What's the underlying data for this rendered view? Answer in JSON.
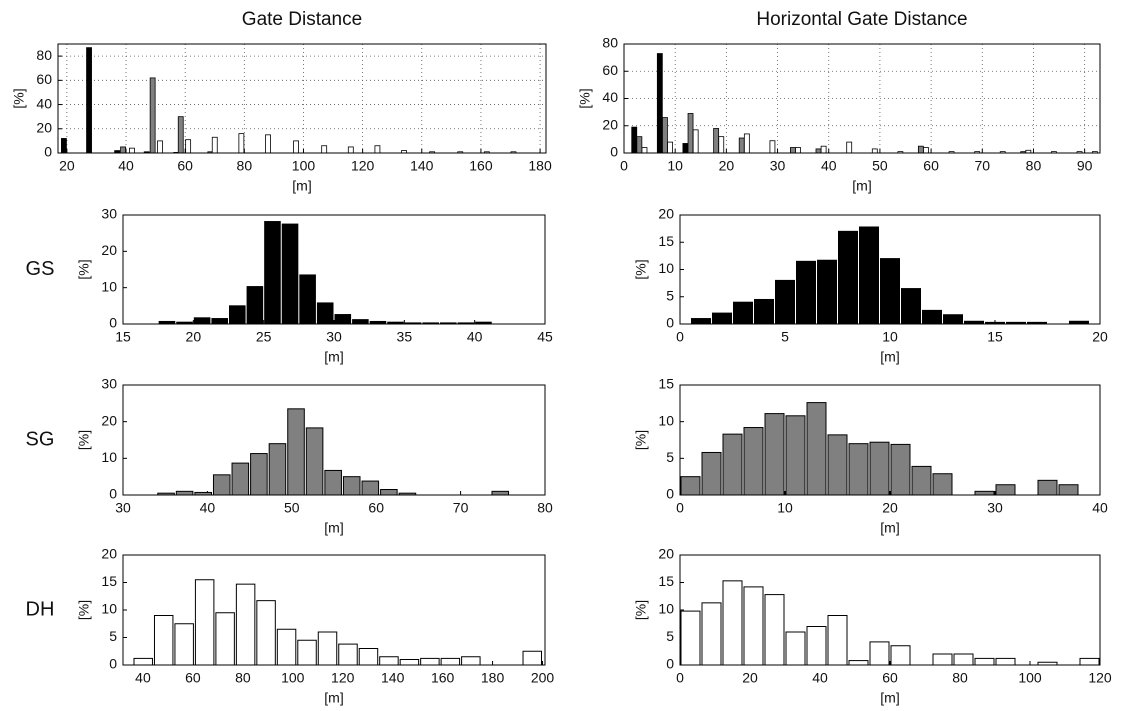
{
  "chart_data": [
    {
      "type": "bar",
      "title": "Gate Distance",
      "xlabel": "[m]",
      "ylabel": "[%]",
      "xlim": [
        17,
        182
      ],
      "ylim": [
        0,
        90
      ],
      "xticks": [
        20,
        40,
        60,
        80,
        100,
        120,
        140,
        160,
        180
      ],
      "yticks": [
        0,
        20,
        40,
        60,
        80
      ],
      "grid": true,
      "series": [
        {
          "color": "#000000",
          "x": [
            19,
            27.5,
            37,
            47,
            57
          ],
          "values": [
            12,
            87,
            2,
            1,
            0.5
          ]
        },
        {
          "color": "#808080",
          "x": [
            39,
            49,
            58.5,
            68.5
          ],
          "values": [
            5,
            62,
            30,
            1
          ]
        },
        {
          "color": "#ffffff",
          "x": [
            42,
            51.5,
            61,
            70,
            79,
            88,
            97.5,
            107,
            116,
            125,
            134,
            143.5,
            153,
            162,
            171
          ],
          "values": [
            4,
            10,
            11,
            13,
            16,
            15,
            10,
            6,
            5,
            6,
            2,
            1,
            1,
            1,
            1
          ]
        }
      ]
    },
    {
      "type": "bar",
      "title": "Horizontal Gate Distance",
      "xlabel": "[m]",
      "ylabel": "[%]",
      "xlim": [
        0,
        93
      ],
      "ylim": [
        0,
        80
      ],
      "xticks": [
        0,
        10,
        20,
        30,
        40,
        50,
        60,
        70,
        80,
        90
      ],
      "yticks": [
        0,
        20,
        40,
        60,
        80
      ],
      "grid": true,
      "series": [
        {
          "color": "#000000",
          "x": [
            2,
            7,
            12
          ],
          "values": [
            19,
            73,
            7
          ]
        },
        {
          "color": "#808080",
          "x": [
            3,
            8,
            13,
            18,
            23,
            33,
            38,
            58,
            78
          ],
          "values": [
            12,
            26,
            29,
            18,
            11,
            4,
            3,
            5,
            1
          ]
        },
        {
          "color": "#ffffff",
          "x": [
            4,
            9,
            14,
            19,
            24,
            29,
            34,
            39,
            44,
            49,
            54,
            59,
            64,
            69,
            74,
            79,
            84,
            89,
            92
          ],
          "values": [
            4,
            8,
            17,
            12,
            14,
            9,
            4,
            5,
            8,
            3,
            1,
            4,
            1,
            1,
            1,
            2,
            1,
            1,
            1
          ]
        }
      ]
    },
    {
      "type": "histogram",
      "panel_label": "GS",
      "xlabel": "[m]",
      "ylabel": "[%]",
      "color": "#000000",
      "xlim": [
        15,
        45
      ],
      "ylim": [
        0,
        30
      ],
      "xticks": [
        15,
        20,
        25,
        30,
        35,
        40,
        45
      ],
      "yticks": [
        0,
        10,
        20,
        30
      ],
      "grid": false,
      "bins": [
        17.5,
        18.75,
        20,
        21.25,
        22.5,
        23.75,
        25,
        26.25,
        27.5,
        28.75,
        30,
        31.25,
        32.5,
        33.75,
        35,
        36.25,
        37.5,
        38.75,
        40,
        41.25
      ],
      "values": [
        0.7,
        0.5,
        1.7,
        1.5,
        5,
        10.3,
        28.2,
        27.5,
        13.5,
        5.8,
        2.6,
        1.2,
        0.7,
        0.5,
        0.3,
        0.3,
        0.3,
        0.3,
        0.5
      ]
    },
    {
      "type": "histogram",
      "xlabel": "[m]",
      "ylabel": "[%]",
      "color": "#000000",
      "xlim": [
        0,
        20
      ],
      "ylim": [
        0,
        20
      ],
      "xticks": [
        0,
        5,
        10,
        15,
        20
      ],
      "yticks": [
        0,
        5,
        10,
        15,
        20
      ],
      "grid": false,
      "bins": [
        0.5,
        1.5,
        2.5,
        3.5,
        4.5,
        5.5,
        6.5,
        7.5,
        8.5,
        9.5,
        10.5,
        11.5,
        12.5,
        13.5,
        14.5,
        15.5,
        16.5,
        17.5,
        18.5,
        19.5
      ],
      "values": [
        1,
        2,
        4,
        4.5,
        8,
        11.5,
        11.7,
        17,
        17.8,
        12,
        6.5,
        2.5,
        1.7,
        0.5,
        0.3,
        0.3,
        0.3,
        0,
        0.5
      ]
    },
    {
      "type": "histogram",
      "panel_label": "SG",
      "xlabel": "[m]",
      "ylabel": "[%]",
      "color": "#808080",
      "xlim": [
        30,
        80
      ],
      "ylim": [
        0,
        30
      ],
      "xticks": [
        30,
        40,
        50,
        60,
        70,
        80
      ],
      "yticks": [
        0,
        10,
        20,
        30
      ],
      "grid": false,
      "bins": [
        34,
        36.2,
        38.4,
        40.6,
        42.8,
        45,
        47.2,
        49.4,
        51.6,
        53.8,
        56,
        58.2,
        60.4,
        62.6,
        64.8,
        67,
        69.2,
        71.4,
        73.6,
        75.8
      ],
      "values": [
        0.5,
        1,
        0.7,
        5.5,
        8.7,
        11.3,
        14,
        23.5,
        18.3,
        6.7,
        5,
        3.8,
        1.5,
        0.5,
        0,
        0,
        0,
        0,
        1
      ]
    },
    {
      "type": "histogram",
      "xlabel": "[m]",
      "ylabel": "[%]",
      "color": "#808080",
      "xlim": [
        0,
        40
      ],
      "ylim": [
        0,
        15
      ],
      "xticks": [
        0,
        10,
        20,
        30,
        40
      ],
      "yticks": [
        0,
        5,
        10,
        15
      ],
      "grid": false,
      "bins": [
        0,
        2,
        4,
        6,
        8,
        10,
        12,
        14,
        16,
        18,
        20,
        22,
        24,
        26,
        28,
        30,
        32,
        34,
        36,
        38
      ],
      "values": [
        2.5,
        5.8,
        8.3,
        9.2,
        11.1,
        10.8,
        12.6,
        8.2,
        7,
        7.2,
        6.9,
        3.9,
        2.9,
        0,
        0.5,
        1.4,
        0,
        2,
        1.4
      ]
    },
    {
      "type": "histogram",
      "panel_label": "DH",
      "xlabel": "[m]",
      "ylabel": "[%]",
      "color": "#ffffff",
      "xlim": [
        32,
        201
      ],
      "ylim": [
        0,
        20
      ],
      "xticks": [
        40,
        60,
        80,
        100,
        120,
        140,
        160,
        180,
        200
      ],
      "yticks": [
        0,
        5,
        10,
        15,
        20
      ],
      "grid": false,
      "bins": [
        36,
        44.2,
        52.4,
        60.6,
        68.8,
        77,
        85.2,
        93.4,
        101.6,
        109.8,
        118,
        126.2,
        134.4,
        142.6,
        150.8,
        159,
        167.2,
        175.4,
        183.6,
        191.8,
        200
      ],
      "values": [
        1.2,
        9,
        7.5,
        15.5,
        9.5,
        14.7,
        11.7,
        6.5,
        4.5,
        6,
        3.8,
        3,
        1.5,
        1,
        1.2,
        1.2,
        1.5,
        0,
        0,
        2.5
      ]
    },
    {
      "type": "histogram",
      "xlabel": "[m]",
      "ylabel": "[%]",
      "color": "#ffffff",
      "xlim": [
        0,
        120
      ],
      "ylim": [
        0,
        20
      ],
      "xticks": [
        0,
        20,
        40,
        60,
        80,
        100,
        120
      ],
      "yticks": [
        0,
        5,
        10,
        15,
        20
      ],
      "grid": false,
      "bins": [
        0,
        6,
        12,
        18,
        24,
        30,
        36,
        42,
        48,
        54,
        60,
        66,
        72,
        78,
        84,
        90,
        96,
        102,
        108,
        114,
        120
      ],
      "values": [
        9.8,
        11.3,
        15.3,
        14.2,
        12.8,
        6,
        7,
        9,
        0.8,
        4.2,
        3.5,
        0,
        2,
        2,
        1.2,
        1.2,
        0,
        0.5,
        0,
        1.2
      ]
    }
  ]
}
